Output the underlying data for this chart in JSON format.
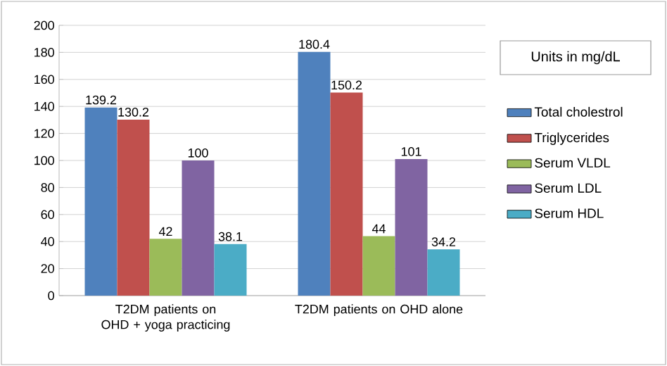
{
  "chart_data": {
    "type": "bar",
    "categories": [
      "T2DM patients on OHD + yoga practicing",
      "T2DM patients on OHD alone"
    ],
    "series": [
      {
        "name": "Total cholestrol",
        "color": "#4f81bd",
        "values": [
          139.2,
          180.4
        ]
      },
      {
        "name": "Triglycerides",
        "color": "#c0504d",
        "values": [
          130.2,
          150.2
        ]
      },
      {
        "name": "Serum VLDL",
        "color": "#9bbb59",
        "values": [
          42,
          44
        ]
      },
      {
        "name": "Serum LDL",
        "color": "#8064a2",
        "values": [
          100,
          101
        ]
      },
      {
        "name": "Serum HDL",
        "color": "#4bacc6",
        "values": [
          38.1,
          34.2
        ]
      }
    ],
    "ylim": [
      0,
      200
    ],
    "yticks": [
      0,
      20,
      40,
      60,
      80,
      100,
      120,
      140,
      160,
      180,
      200
    ],
    "grid": "y",
    "legend": "right",
    "data_labels": true,
    "annotations": [
      "Units in mg/dL"
    ]
  }
}
